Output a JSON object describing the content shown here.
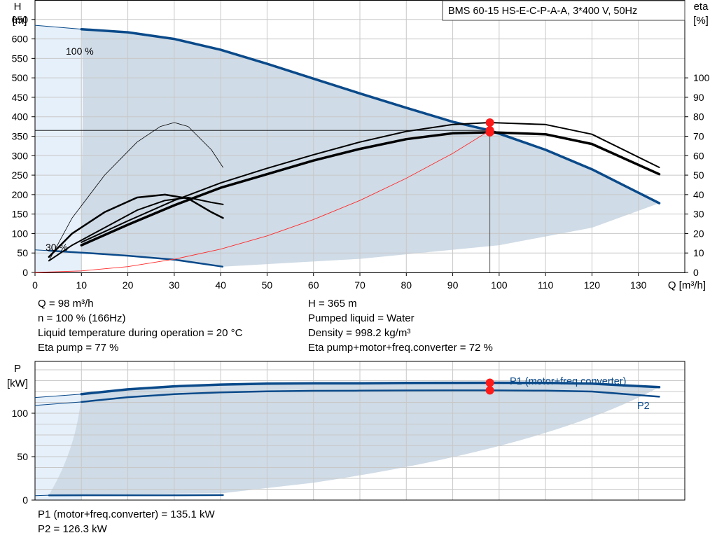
{
  "chart_data": [
    {
      "type": "line",
      "title": "BMS 60-15 HS-E-C-P-A-A, 3*400 V, 50Hz",
      "xlabel": "Q [m³/h]",
      "ylabel": "H\n[m]",
      "y2label": "eta\n[%]",
      "xlim": [
        0,
        140
      ],
      "ylim": [
        0,
        700
      ],
      "y2lim": [
        0,
        140
      ],
      "x_ticks": [
        0,
        10,
        20,
        30,
        40,
        50,
        60,
        70,
        80,
        90,
        100,
        110,
        120,
        130
      ],
      "y_ticks": [
        0,
        50,
        100,
        150,
        200,
        250,
        300,
        350,
        400,
        450,
        500,
        550,
        600,
        650
      ],
      "y2_ticks": [
        0,
        10,
        20,
        30,
        40,
        50,
        60,
        70,
        80,
        90,
        100
      ],
      "grid": true,
      "series": [
        {
          "name": "100 %",
          "color": "#0a4a8a",
          "x": [
            10,
            20,
            30,
            40,
            50,
            60,
            70,
            80,
            90,
            98,
            110,
            120,
            134.5
          ],
          "y": [
            625,
            617,
            600,
            572,
            536,
            498,
            460,
            423,
            387,
            365,
            315,
            265,
            178
          ]
        },
        {
          "name": "30 %",
          "color": "#0a4a8a",
          "x": [
            3,
            10,
            20,
            30,
            40.4
          ],
          "y": [
            56,
            51,
            43,
            33,
            15
          ]
        },
        {
          "name": "",
          "color": "#000000",
          "role": "eta-pump",
          "x": [
            10,
            20,
            30,
            40,
            50,
            60,
            70,
            80,
            90,
            98,
            110,
            120,
            134.5
          ],
          "y": [
            14.0,
            24.5,
            34.5,
            43.5,
            50.5,
            57.5,
            63.5,
            68.5,
            71.5,
            72.0,
            71.0,
            66.0,
            50.5
          ]
        },
        {
          "name": "",
          "color": "#000000",
          "role": "eta-pump-thin",
          "x": [
            10,
            20,
            30,
            40,
            50,
            60,
            70,
            80,
            90,
            98,
            110,
            120,
            134.5
          ],
          "y": [
            15.5,
            26.5,
            37.0,
            46.0,
            53.5,
            60.5,
            67.0,
            72.5,
            76.0,
            77.0,
            76.0,
            71.0,
            54.0
          ]
        },
        {
          "name": "",
          "color": "#000000",
          "role": "eta-pump-30",
          "x": [
            3,
            8,
            15,
            22,
            28,
            33,
            38,
            40.5
          ],
          "y": [
            8,
            20,
            31,
            38.5,
            40,
            38,
            31,
            28
          ]
        },
        {
          "name": "",
          "color": "#000000",
          "role": "eta-total-30",
          "x": [
            3,
            8,
            15,
            22,
            28,
            33,
            38,
            40.5
          ],
          "y": [
            6,
            14,
            23,
            32,
            37,
            38.5,
            36,
            35
          ]
        },
        {
          "name": "",
          "color": "#000000",
          "role": "H-30-thin",
          "x": [
            3,
            8,
            15,
            22,
            27,
            30,
            33,
            38,
            40.5
          ],
          "y": [
            30,
            140,
            250,
            335,
            375,
            385,
            375,
            315,
            270
          ]
        },
        {
          "name": "",
          "color": "#ff2a2a",
          "role": "system-curve",
          "x": [
            0,
            10,
            20,
            30,
            40,
            50,
            60,
            70,
            80,
            90,
            98
          ],
          "y": [
            0,
            4,
            15,
            34,
            60,
            94,
            136,
            185,
            242,
            306,
            365
          ]
        }
      ],
      "annotations": {
        "duty_point": {
          "x": 98,
          "y": 365,
          "eta_pump": 77,
          "eta_total": 72
        },
        "labels": [
          "100 %",
          "30 %"
        ]
      }
    },
    {
      "type": "line",
      "ylabel": "P\n[kW]",
      "xlim": [
        0,
        140
      ],
      "ylim": [
        0,
        150
      ],
      "y_ticks": [
        0,
        50,
        100
      ],
      "grid": true,
      "series": [
        {
          "name": "P1 (motor+freq.converter)",
          "color": "#0a4a8a",
          "x": [
            10,
            20,
            30,
            40,
            50,
            60,
            70,
            80,
            90,
            98,
            110,
            120,
            134.5
          ],
          "y": [
            122,
            127.5,
            131,
            133,
            134,
            134.5,
            134.5,
            134.8,
            135,
            135.1,
            135,
            134,
            130
          ]
        },
        {
          "name": "P2",
          "color": "#0a4a8a",
          "x": [
            10,
            20,
            30,
            40,
            50,
            60,
            70,
            80,
            90,
            98,
            110,
            120,
            134.5
          ],
          "y": [
            113,
            118.5,
            122,
            124,
            125.2,
            125.8,
            126,
            126.2,
            126.3,
            126.3,
            126,
            125,
            119
          ]
        },
        {
          "name": "",
          "color": "#0a4a8a",
          "role": "P-30",
          "x": [
            3,
            10,
            20,
            30,
            40.5
          ],
          "y": [
            5.5,
            5.6,
            5.6,
            5.6,
            5.7
          ]
        }
      ],
      "annotations": {
        "duty_point": {
          "x": 98,
          "p1": 135.1,
          "p2": 126.3
        }
      }
    }
  ],
  "info": {
    "left": [
      "Q = 98 m³/h",
      "n = 100 % (166Hz)",
      "Liquid temperature during operation = 20 °C",
      "Eta pump = 77 %"
    ],
    "right": [
      "H = 365 m",
      "Pumped liquid = Water",
      "Density = 998.2 kg/m³",
      "Eta pump+motor+freq.converter = 72 %"
    ],
    "power": [
      "P1 (motor+freq.converter) = 135.1 kW",
      "P2 = 126.3 kW"
    ]
  }
}
